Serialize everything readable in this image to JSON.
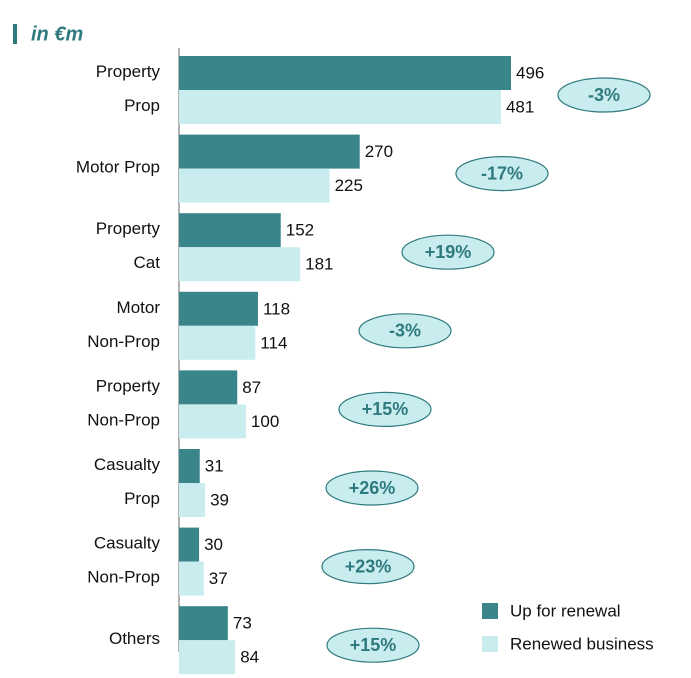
{
  "chart_data": {
    "type": "hbar",
    "title": "in €m",
    "categories": [
      "Property\nProp",
      "Motor Prop",
      "Property\nCat",
      "Motor\nNon-Prop",
      "Property\nNon-Prop",
      "Casualty\nProp",
      "Casualty\nNon-Prop",
      "Others"
    ],
    "series": [
      {
        "name": "Up for renewal",
        "color": "#3a8589",
        "values": [
          496,
          270,
          152,
          118,
          87,
          31,
          30,
          73
        ]
      },
      {
        "name": "Renewed business",
        "color": "#c9ecef",
        "values": [
          481,
          225,
          181,
          114,
          100,
          39,
          37,
          84
        ]
      }
    ],
    "annotations": [
      "-3%",
      "-17%",
      "+19%",
      "-3%",
      "+15%",
      "+26%",
      "+23%",
      "+15%"
    ],
    "xlim": [
      0,
      750
    ],
    "legend": "bottom-right"
  }
}
